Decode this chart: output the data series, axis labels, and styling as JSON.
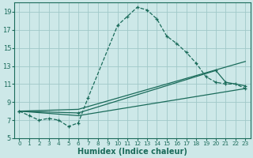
{
  "xlabel": "Humidex (Indice chaleur)",
  "bg_color": "#cde8e8",
  "grid_color": "#a0c8c8",
  "line_color": "#1a6b5a",
  "xlim": [
    -0.5,
    23.5
  ],
  "ylim": [
    5,
    20
  ],
  "xticks": [
    0,
    1,
    2,
    3,
    4,
    5,
    6,
    7,
    8,
    9,
    10,
    11,
    12,
    13,
    14,
    15,
    16,
    17,
    18,
    19,
    20,
    21,
    22,
    23
  ],
  "yticks": [
    5,
    7,
    9,
    11,
    13,
    15,
    17,
    19
  ],
  "curve1_x": [
    0,
    1,
    2,
    3,
    4,
    5,
    6,
    7,
    10,
    11,
    12,
    13,
    14,
    15,
    16,
    17,
    18,
    19,
    20,
    21,
    22,
    23
  ],
  "curve1_y": [
    8.0,
    7.5,
    7.0,
    7.2,
    7.0,
    6.3,
    6.7,
    9.5,
    17.5,
    18.5,
    19.5,
    19.2,
    18.2,
    16.3,
    15.5,
    14.5,
    13.3,
    11.8,
    11.2,
    11.0,
    11.0,
    10.5
  ],
  "curve2_x": [
    0,
    6,
    23
  ],
  "curve2_y": [
    8.0,
    8.2,
    13.5
  ],
  "curve3_x": [
    0,
    6,
    20,
    21,
    23
  ],
  "curve3_y": [
    8.0,
    7.8,
    12.5,
    11.2,
    10.8
  ],
  "curve4_x": [
    0,
    6,
    23
  ],
  "curve4_y": [
    8.0,
    7.5,
    10.5
  ]
}
